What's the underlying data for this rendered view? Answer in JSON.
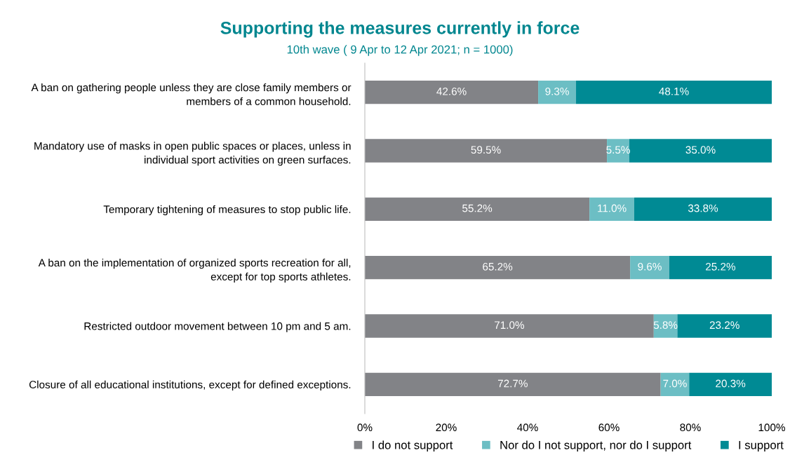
{
  "chart_data": {
    "type": "bar",
    "orientation": "horizontal",
    "stacked": true,
    "title": "Supporting the measures currently in force",
    "subtitle": "10th wave ( 9 Apr to 12 Apr 2021; n = 1000)",
    "categories": [
      "A ban on gathering people unless they are close family members or\nmembers of a common household.",
      "Mandatory use of masks in open public spaces or places, unless in\nindividual sport activities on green surfaces.",
      "Temporary tightening of measures to stop public life.",
      "A ban on the implementation of organized sports recreation for all,\nexcept for top sports athletes.",
      "Restricted outdoor movement between 10 pm and 5 am.",
      "Closure of all educational institutions, except for defined exceptions."
    ],
    "series": [
      {
        "name": "I do not support",
        "color": "#828387",
        "values": [
          42.6,
          59.5,
          55.2,
          65.2,
          71.0,
          72.7
        ],
        "value_labels": [
          "42.6%",
          "59.5%",
          "55.2%",
          "65.2%",
          "71.0%",
          "72.7%"
        ]
      },
      {
        "name": "Nor do I not support, nor do I support",
        "color": "#6cbec4",
        "values": [
          9.3,
          5.5,
          11.0,
          9.6,
          5.8,
          7.0
        ],
        "value_labels": [
          "9.3%",
          "5.5%",
          "11.0%",
          "9.6%",
          "5.8%",
          "7.0%"
        ]
      },
      {
        "name": "I support",
        "color": "#008a94",
        "values": [
          48.1,
          35.0,
          33.8,
          25.2,
          23.2,
          20.3
        ],
        "value_labels": [
          "48.1%",
          "35.0%",
          "33.8%",
          "25.2%",
          "23.2%",
          "20.3%"
        ]
      }
    ],
    "xlim": [
      0,
      100
    ],
    "xticks": [
      {
        "value": 0,
        "label": "0%"
      },
      {
        "value": 20,
        "label": "20%"
      },
      {
        "value": 40,
        "label": "40%"
      },
      {
        "value": 60,
        "label": "60%"
      },
      {
        "value": 80,
        "label": "80%"
      },
      {
        "value": 100,
        "label": "100%"
      }
    ],
    "grid": false,
    "legend": "bottom"
  }
}
